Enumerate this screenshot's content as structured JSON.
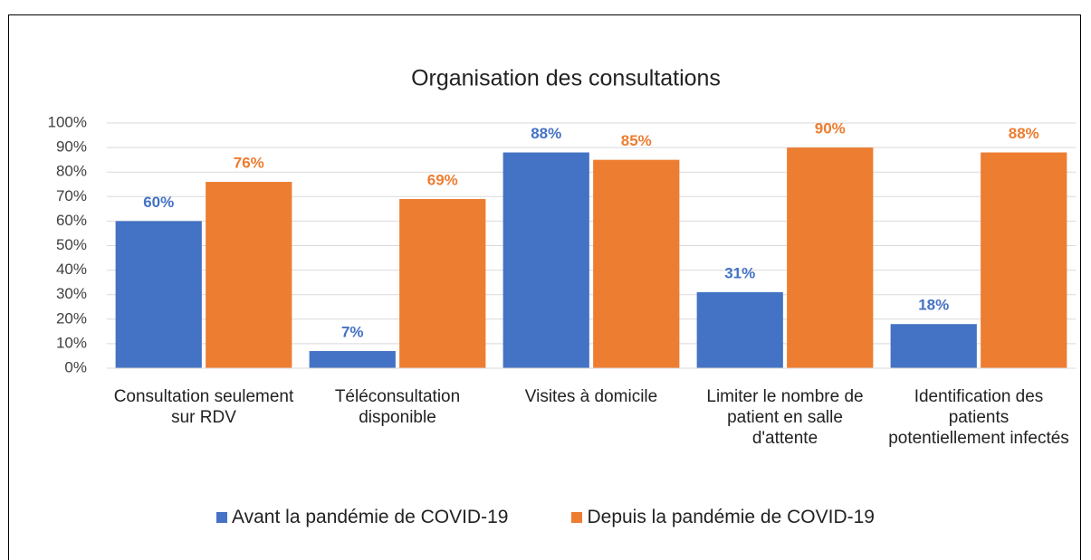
{
  "chart_data": {
    "type": "bar",
    "title": "Organisation des consultations",
    "categories": [
      "Consultation seulement sur RDV",
      "Téléconsultation disponible",
      "Visites à domicile",
      "Limiter le nombre de patient en salle d'attente",
      "Identification des patients potentiellement infectés"
    ],
    "series": [
      {
        "name": "Avant la pandémie de COVID-19",
        "color": "#4472c4",
        "values": [
          60,
          7,
          88,
          31,
          18
        ],
        "value_labels": [
          "60%",
          "7%",
          "88%",
          "31%",
          "18%"
        ]
      },
      {
        "name": "Depuis la pandémie de COVID-19",
        "color": "#ed7d31",
        "values": [
          76,
          69,
          85,
          90,
          88
        ],
        "value_labels": [
          "76%",
          "69%",
          "85%",
          "90%",
          "88%"
        ]
      }
    ],
    "ylim": [
      0,
      100
    ],
    "yticks": [
      {
        "value": 0,
        "label": "0%"
      },
      {
        "value": 10,
        "label": "10%"
      },
      {
        "value": 20,
        "label": "20%"
      },
      {
        "value": 30,
        "label": "30%"
      },
      {
        "value": 40,
        "label": "40%"
      },
      {
        "value": 50,
        "label": "50%"
      },
      {
        "value": 60,
        "label": "60%"
      },
      {
        "value": 70,
        "label": "70%"
      },
      {
        "value": 80,
        "label": "80%"
      },
      {
        "value": 90,
        "label": "90%"
      },
      {
        "value": 100,
        "label": "100%"
      }
    ],
    "grid": true,
    "legend": "bottom"
  }
}
